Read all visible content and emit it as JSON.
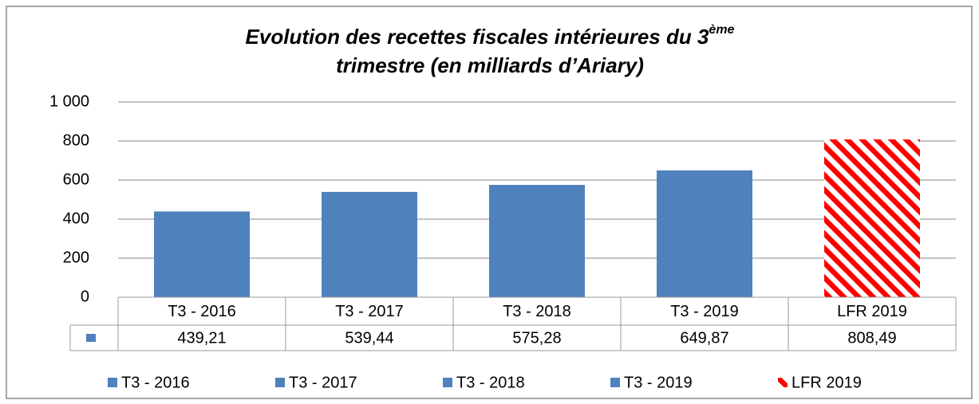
{
  "chart_data": {
    "type": "bar",
    "title": {
      "line1": "Evolution des recettes fiscales intérieures du 3",
      "superscript": "ème",
      "line2": "trimestre (en milliards d’Ariary)"
    },
    "categories": [
      "T3 - 2016",
      "T3 - 2017",
      "T3 - 2018",
      "T3 - 2019",
      "LFR 2019"
    ],
    "values": [
      439.21,
      539.44,
      575.28,
      649.87,
      808.49
    ],
    "value_labels": [
      "439,21",
      "539,44",
      "575,28",
      "649,87",
      "808,49"
    ],
    "colors": [
      "#4f81bd",
      "#4f81bd",
      "#4f81bd",
      "#4f81bd",
      "#ff0000"
    ],
    "hatched": [
      false,
      false,
      false,
      false,
      true
    ],
    "ylim": [
      0,
      1000
    ],
    "yticks": [
      0,
      200,
      400,
      600,
      800,
      {
        "value": 1000,
        "label": "1 000"
      }
    ],
    "grid": true,
    "data_table": true,
    "legend": "bottom"
  }
}
